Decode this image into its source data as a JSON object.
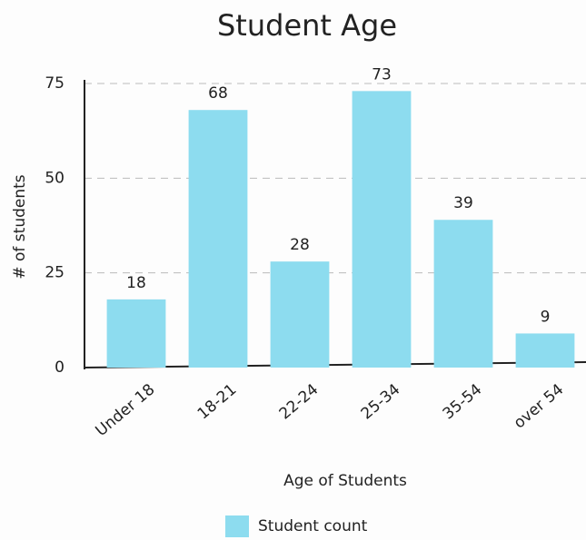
{
  "chart_data": {
    "type": "bar",
    "title": "Student Age",
    "categories": [
      "Under 18",
      "18-21",
      "22-24",
      "25-34",
      "35-54",
      "over 54"
    ],
    "values": [
      18,
      68,
      28,
      73,
      39,
      9
    ],
    "color": "#8ddcef",
    "series_name": "Student count",
    "x_label": "Age of Students",
    "y_label": "# of students",
    "ylim": [
      0,
      75
    ],
    "yticks": [
      0,
      25,
      50,
      75
    ],
    "grid": true
  }
}
